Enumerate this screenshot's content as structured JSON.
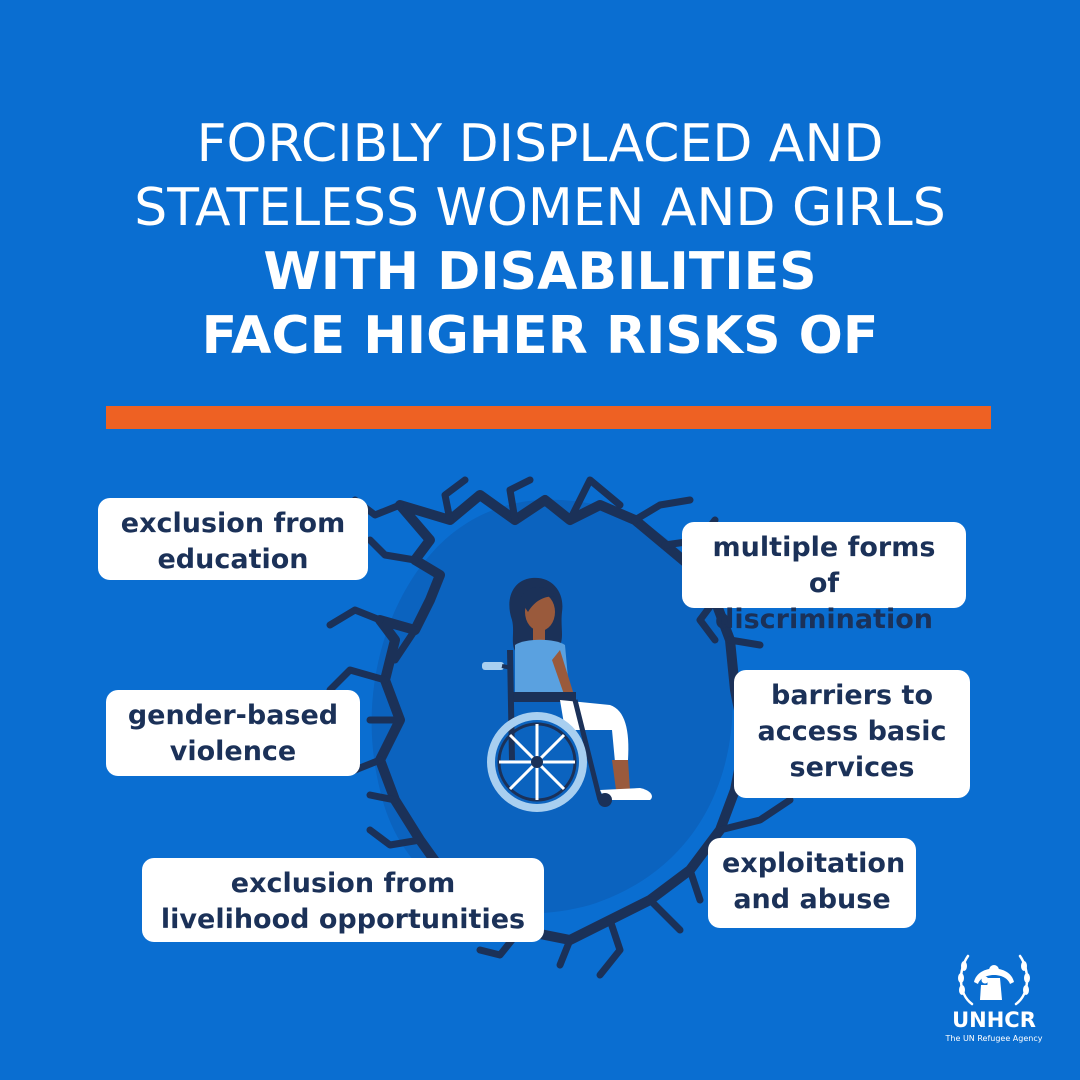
{
  "headline": {
    "line1": "FORCIBLY DISPLACED AND",
    "line2": "STATELESS WOMEN AND GIRLS",
    "line3": "WITH DISABILITIES",
    "line4": "FACE HIGHER RISKS OF"
  },
  "risks": [
    {
      "line1": "exclusion from",
      "line2": "education"
    },
    {
      "line1": "multiple forms of",
      "line2": "discrimination"
    },
    {
      "line1": "gender-based",
      "line2": "violence"
    },
    {
      "line1": "barriers to",
      "line2": "access basic",
      "line3": "services"
    },
    {
      "line1": "exploitation",
      "line2": "and abuse"
    },
    {
      "line1": "exclusion from",
      "line2": "livelihood opportunities"
    }
  ],
  "logo": {
    "wordmark": "UNHCR",
    "tagline": "The UN Refugee Agency"
  },
  "colors": {
    "background": "#0a6ed1",
    "accent_rule": "#ee6123",
    "label_text": "#1b3158",
    "crack": "#1b3158"
  },
  "icons": [
    "cracked-ground-icon",
    "woman-wheelchair-icon",
    "unhcr-emblem-icon"
  ]
}
